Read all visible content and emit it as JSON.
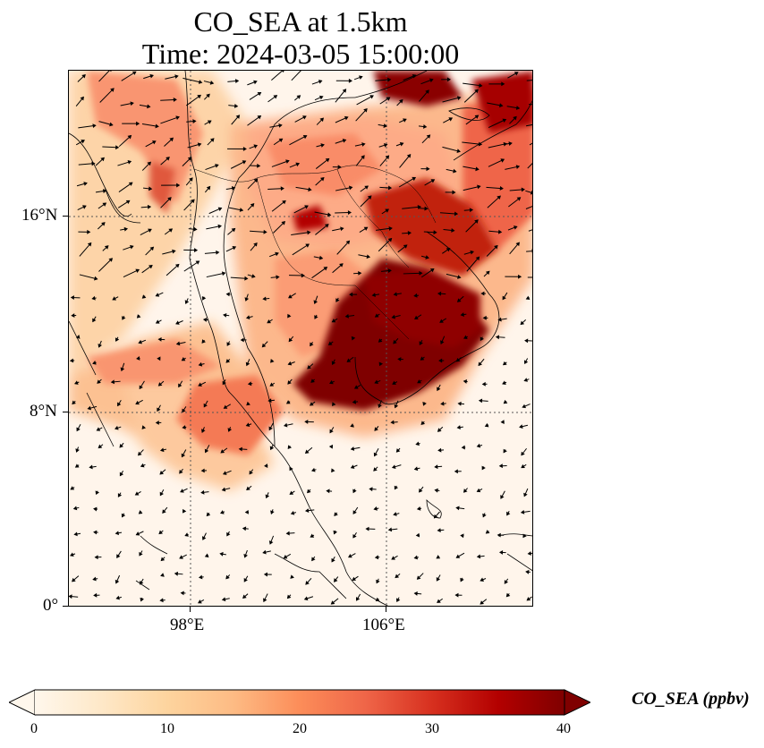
{
  "title_line1": "CO_SEA at 1.5km",
  "title_line2": "Time: 2024-03-05 15:00:00",
  "lat_labels": [
    "16°N",
    "8°N",
    "0°"
  ],
  "lon_labels": [
    "98°E",
    "106°E"
  ],
  "colorbar": {
    "label": "CO_SEA (ppbv)",
    "ticks": [
      "0",
      "10",
      "20",
      "30",
      "40"
    ],
    "min": 0,
    "max": 40,
    "extend": "both",
    "colormap": "OrRd",
    "colors": [
      "#fff7ec",
      "#fee8c8",
      "#fdd49e",
      "#fdbb84",
      "#fc8d59",
      "#ef6548",
      "#d7301f",
      "#b30000",
      "#7f0000"
    ]
  },
  "map": {
    "extent_lon": [
      93,
      112
    ],
    "extent_lat": [
      0,
      22
    ],
    "gridlines": "dotted",
    "vectors": "wind arrows"
  }
}
